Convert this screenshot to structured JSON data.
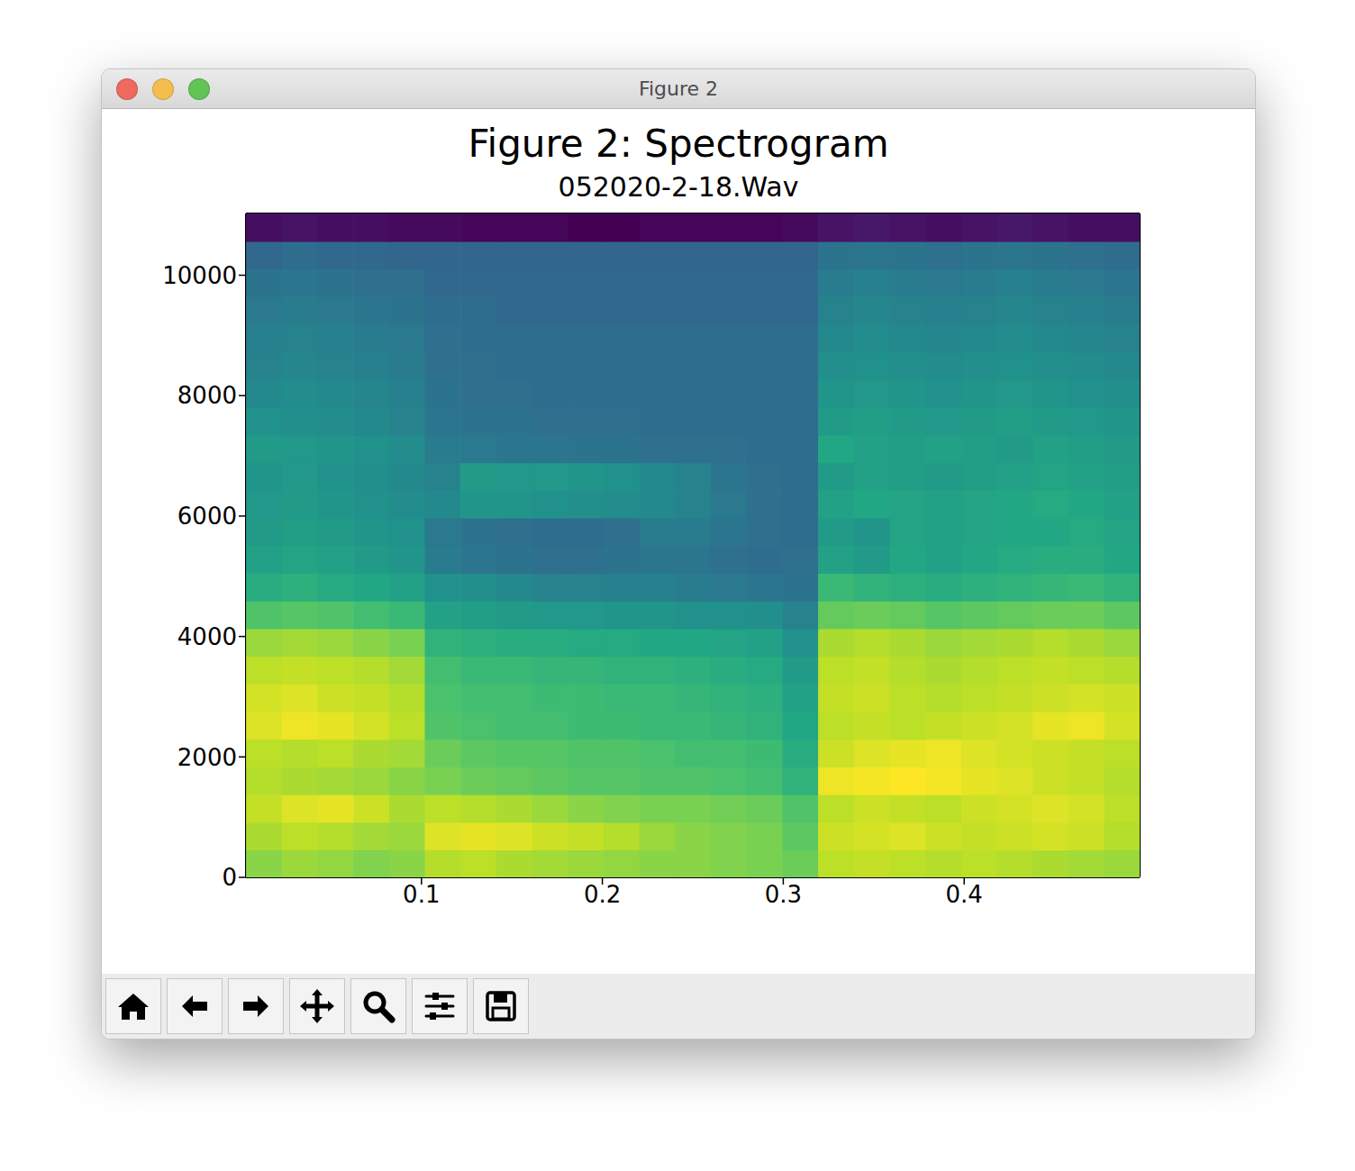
{
  "window": {
    "title": "Figure 2"
  },
  "chart_data": {
    "type": "heatmap",
    "title": "Figure 2: Spectrogram",
    "subtitle": "052020-2-18.Wav",
    "xlim": [
      0.003,
      0.497
    ],
    "xticks": [
      0.1,
      0.2,
      0.3,
      0.4
    ],
    "ylim": [
      0,
      11025
    ],
    "yticks": [
      0,
      2000,
      4000,
      6000,
      8000,
      10000
    ],
    "x": [
      0.0129,
      0.0326,
      0.0524,
      0.0722,
      0.0919,
      0.1117,
      0.1315,
      0.1512,
      0.171,
      0.1908,
      0.2105,
      0.2303,
      0.2501,
      0.2698,
      0.2896,
      0.3094,
      0.3291,
      0.3489,
      0.3687,
      0.3884,
      0.4082,
      0.428,
      0.4477,
      0.4675,
      0.4873
    ],
    "y": [
      230,
      689,
      1148,
      1608,
      2067,
      2527,
      2986,
      3445,
      3905,
      4364,
      4823,
      5283,
      5742,
      6202,
      6661,
      7120,
      7580,
      8039,
      8498,
      8958,
      9417,
      9877,
      10336,
      10795
    ],
    "cells": [
      [
        80,
        82,
        81,
        79,
        80,
        85,
        86,
        84,
        83,
        82,
        81,
        80,
        80,
        79,
        78,
        76,
        86,
        87,
        86,
        85,
        86,
        85,
        84,
        83,
        82
      ],
      [
        84,
        86,
        85,
        83,
        82,
        90,
        91,
        90,
        88,
        87,
        85,
        82,
        80,
        79,
        78,
        74,
        88,
        89,
        90,
        88,
        87,
        88,
        89,
        88,
        85
      ],
      [
        87,
        90,
        91,
        88,
        84,
        86,
        85,
        84,
        82,
        80,
        79,
        78,
        78,
        77,
        76,
        72,
        86,
        88,
        87,
        86,
        88,
        89,
        90,
        89,
        86
      ],
      [
        85,
        84,
        83,
        82,
        80,
        78,
        76,
        75,
        74,
        73,
        73,
        72,
        72,
        71,
        70,
        66,
        92,
        93,
        94,
        93,
        91,
        90,
        88,
        87,
        85
      ],
      [
        86,
        85,
        86,
        84,
        83,
        76,
        74,
        73,
        73,
        72,
        72,
        71,
        70,
        70,
        69,
        64,
        88,
        90,
        91,
        92,
        90,
        89,
        88,
        87,
        86
      ],
      [
        90,
        92,
        91,
        89,
        86,
        72,
        71,
        70,
        70,
        69,
        69,
        68,
        68,
        67,
        66,
        62,
        86,
        87,
        86,
        87,
        88,
        89,
        91,
        92,
        89
      ],
      [
        89,
        90,
        88,
        87,
        85,
        71,
        70,
        70,
        69,
        69,
        68,
        68,
        67,
        66,
        65,
        60,
        87,
        88,
        86,
        85,
        86,
        87,
        88,
        89,
        88
      ],
      [
        86,
        87,
        86,
        85,
        83,
        70,
        68,
        68,
        67,
        67,
        66,
        66,
        65,
        64,
        63,
        58,
        86,
        87,
        85,
        84,
        85,
        86,
        87,
        86,
        85
      ],
      [
        82,
        83,
        82,
        80,
        78,
        66,
        65,
        64,
        64,
        63,
        63,
        62,
        62,
        61,
        60,
        55,
        84,
        85,
        84,
        82,
        83,
        84,
        85,
        84,
        82
      ],
      [
        72,
        73,
        72,
        70,
        68,
        60,
        59,
        58,
        57,
        57,
        56,
        56,
        55,
        55,
        54,
        50,
        75,
        76,
        75,
        73,
        74,
        75,
        76,
        76,
        74
      ],
      [
        64,
        65,
        63,
        62,
        60,
        55,
        54,
        52,
        50,
        50,
        49,
        49,
        48,
        47,
        46,
        45,
        68,
        66,
        65,
        64,
        65,
        66,
        67,
        68,
        66
      ],
      [
        60,
        61,
        60,
        58,
        56,
        48,
        46,
        45,
        44,
        44,
        45,
        46,
        46,
        44,
        43,
        44,
        60,
        58,
        62,
        60,
        62,
        63,
        64,
        64,
        62
      ],
      [
        58,
        59,
        58,
        56,
        55,
        47,
        45,
        44,
        43,
        43,
        44,
        48,
        48,
        46,
        44,
        43,
        58,
        56,
        61,
        60,
        61,
        62,
        62,
        63,
        61
      ],
      [
        57,
        58,
        56,
        55,
        53,
        52,
        56,
        56,
        55,
        54,
        53,
        52,
        50,
        47,
        44,
        43,
        60,
        62,
        61,
        60,
        61,
        62,
        63,
        62,
        60
      ],
      [
        56,
        57,
        55,
        54,
        52,
        50,
        58,
        57,
        57,
        56,
        55,
        52,
        50,
        46,
        44,
        43,
        58,
        60,
        59,
        58,
        59,
        60,
        61,
        60,
        59
      ],
      [
        58,
        57,
        56,
        55,
        53,
        48,
        47,
        46,
        46,
        45,
        45,
        44,
        44,
        44,
        43,
        43,
        62,
        60,
        59,
        60,
        59,
        58,
        60,
        59,
        58
      ],
      [
        55,
        54,
        53,
        52,
        50,
        46,
        45,
        45,
        44,
        44,
        44,
        43,
        43,
        43,
        43,
        43,
        58,
        59,
        58,
        57,
        58,
        59,
        58,
        57,
        56
      ],
      [
        52,
        53,
        52,
        51,
        49,
        45,
        44,
        44,
        43,
        43,
        43,
        43,
        43,
        43,
        43,
        43,
        56,
        57,
        56,
        55,
        56,
        57,
        56,
        55,
        54
      ],
      [
        50,
        51,
        50,
        49,
        48,
        44,
        44,
        43,
        43,
        43,
        43,
        43,
        43,
        43,
        43,
        43,
        54,
        55,
        54,
        53,
        54,
        55,
        54,
        53,
        52
      ],
      [
        49,
        50,
        49,
        48,
        47,
        44,
        43,
        43,
        43,
        43,
        43,
        43,
        43,
        43,
        43,
        43,
        52,
        53,
        52,
        51,
        52,
        53,
        52,
        51,
        50
      ],
      [
        47,
        48,
        47,
        46,
        45,
        43,
        43,
        42,
        42,
        42,
        42,
        42,
        42,
        42,
        42,
        42,
        50,
        51,
        50,
        49,
        50,
        51,
        50,
        49,
        48
      ],
      [
        45,
        46,
        45,
        44,
        44,
        42,
        42,
        42,
        42,
        42,
        42,
        42,
        42,
        42,
        42,
        42,
        48,
        49,
        48,
        47,
        48,
        49,
        48,
        47,
        46
      ],
      [
        42,
        43,
        42,
        42,
        41,
        41,
        41,
        41,
        41,
        41,
        41,
        41,
        41,
        41,
        41,
        41,
        45,
        46,
        45,
        44,
        45,
        46,
        45,
        44,
        43
      ],
      [
        18,
        19,
        18,
        18,
        17,
        17,
        16,
        16,
        16,
        15,
        15,
        16,
        16,
        16,
        16,
        17,
        19,
        20,
        19,
        18,
        19,
        20,
        19,
        18,
        18
      ]
    ]
  }
}
